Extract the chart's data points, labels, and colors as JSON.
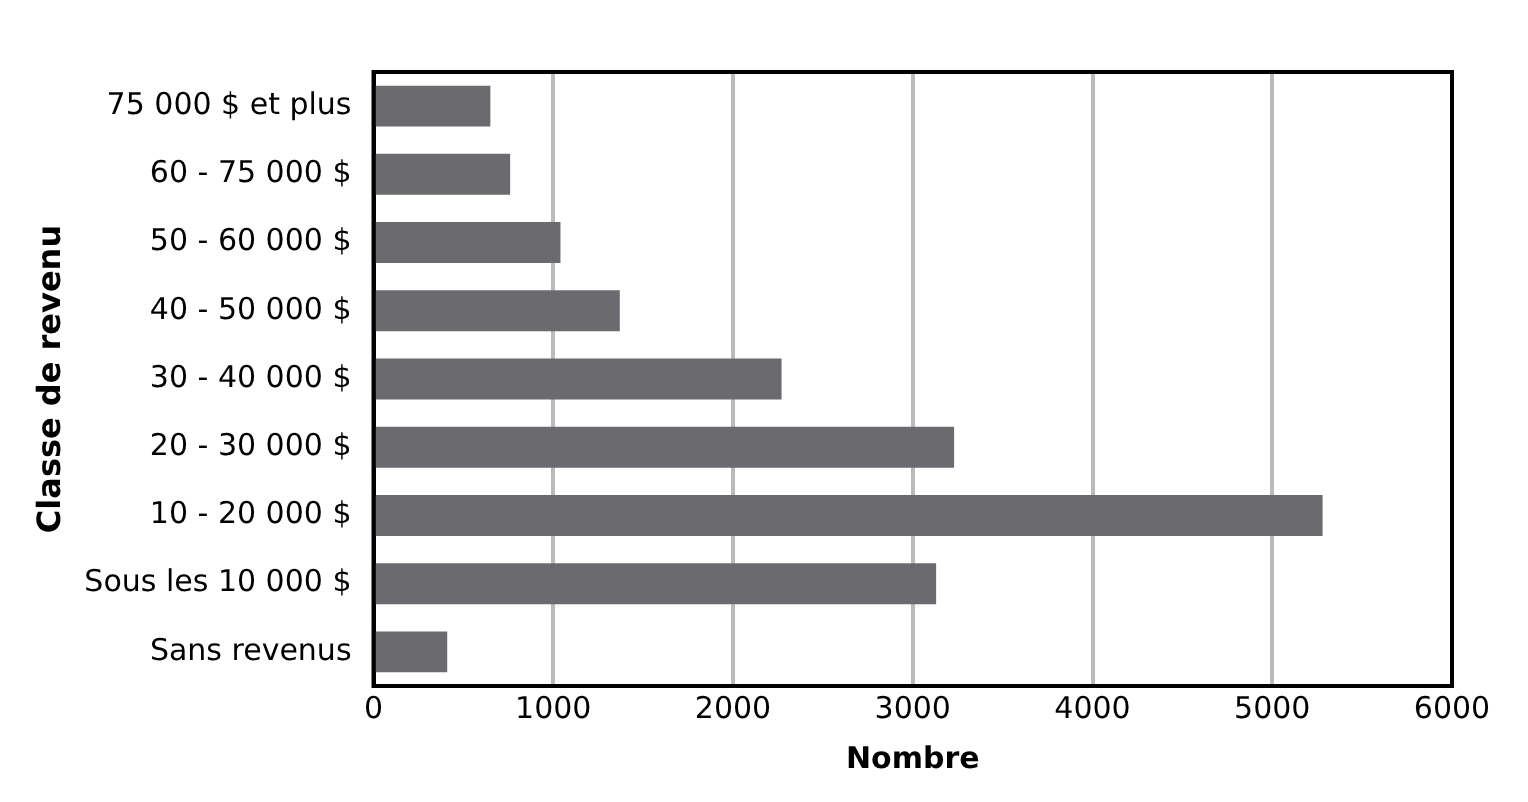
{
  "chart_data": {
    "type": "bar",
    "orientation": "horizontal",
    "xlabel": "Nombre",
    "ylabel": "Classe de revenu",
    "categories": [
      "75 000 $ et plus",
      "60 - 75 000 $",
      "50 - 60 000 $",
      "40 - 50 000 $",
      "30 - 40 000 $",
      "20 - 30 000 $",
      "10 - 20 000 $",
      "Sous les 10 000 $",
      "Sans revenus"
    ],
    "values": [
      650,
      760,
      1040,
      1370,
      2270,
      3230,
      5280,
      3130,
      410
    ],
    "color": "#6b6b6f",
    "xlim": [
      0,
      6000
    ],
    "xticks": [
      0,
      1000,
      2000,
      3000,
      4000,
      5000,
      6000
    ],
    "grid": "x"
  }
}
